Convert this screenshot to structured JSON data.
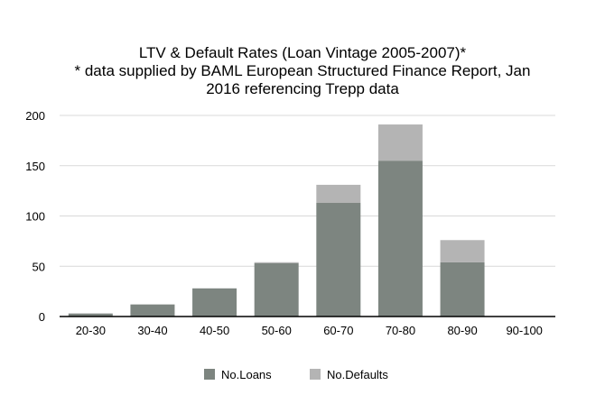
{
  "chart_data": {
    "type": "bar",
    "stacked": true,
    "title_lines": [
      "LTV & Default Rates (Loan Vintage 2005-2007)*",
      "* data supplied by BAML European Structured Finance Report, Jan",
      "2016 referencing Trepp data"
    ],
    "xlabel": "",
    "ylabel": "",
    "categories": [
      "20-30",
      "30-40",
      "40-50",
      "50-60",
      "60-70",
      "70-80",
      "80-90",
      "90-100"
    ],
    "series": [
      {
        "name": "No.Loans",
        "color": "#7d8580",
        "values": [
          3,
          12,
          28,
          53,
          113,
          155,
          54,
          0
        ]
      },
      {
        "name": "No.Defaults",
        "color": "#b4b4b4",
        "values": [
          0,
          0,
          0,
          1,
          18,
          36,
          22,
          0
        ]
      }
    ],
    "ylim": [
      0,
      200
    ],
    "yticks": [
      0,
      50,
      100,
      150,
      200
    ],
    "grid": true,
    "legend_position": "bottom"
  }
}
